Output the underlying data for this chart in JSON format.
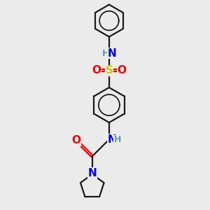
{
  "background_color": "#ebebeb",
  "bond_color": "#1a1a1a",
  "N_color": "#0000ff",
  "O_color": "#ff0000",
  "S_color": "#cccc00",
  "H_color": "#5f9ea0",
  "line_width": 1.6,
  "figsize": [
    3.0,
    3.0
  ],
  "dpi": 100,
  "xlim": [
    0,
    10
  ],
  "ylim": [
    0,
    10
  ]
}
